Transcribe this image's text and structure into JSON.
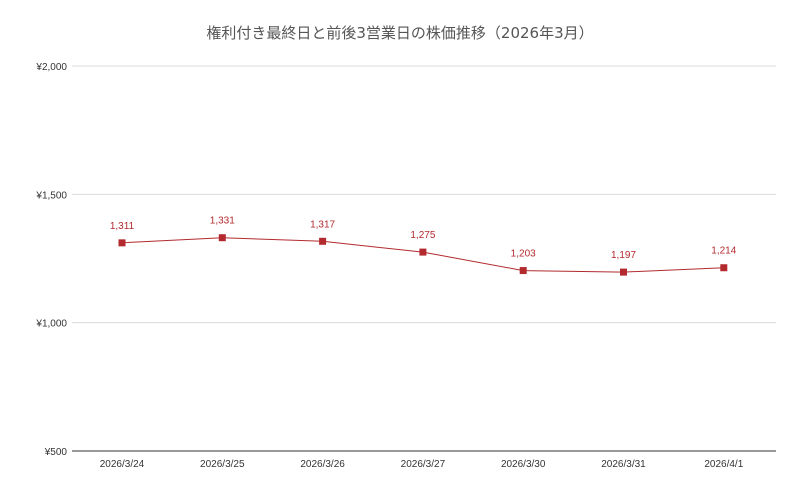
{
  "chart_data": {
    "type": "line",
    "title": "権利付き最終日と前後3営業日の株価推移（2026年3月）",
    "xlabel": "",
    "ylabel": "",
    "categories": [
      "2026/3/24",
      "2026/3/25",
      "2026/3/26",
      "2026/3/27",
      "2026/3/30",
      "2026/3/31",
      "2026/4/1"
    ],
    "series": [
      {
        "values": [
          1311,
          1331,
          1317,
          1275,
          1203,
          1197,
          1214
        ],
        "data_labels": [
          "1,311",
          "1,331",
          "1,317",
          "1,275",
          "1,203",
          "1,197",
          "1,214"
        ]
      }
    ],
    "ylim": [
      500,
      2000
    ],
    "yticks": [
      500,
      1000,
      1500,
      2000
    ],
    "ytick_labels": [
      "¥500",
      "¥1,000",
      "¥1,500",
      "¥2,000"
    ],
    "grid": true,
    "legend": "none",
    "colors": {
      "series": "#b22a2e",
      "grid": "#d9d9d9",
      "baseline": "#333333"
    }
  }
}
